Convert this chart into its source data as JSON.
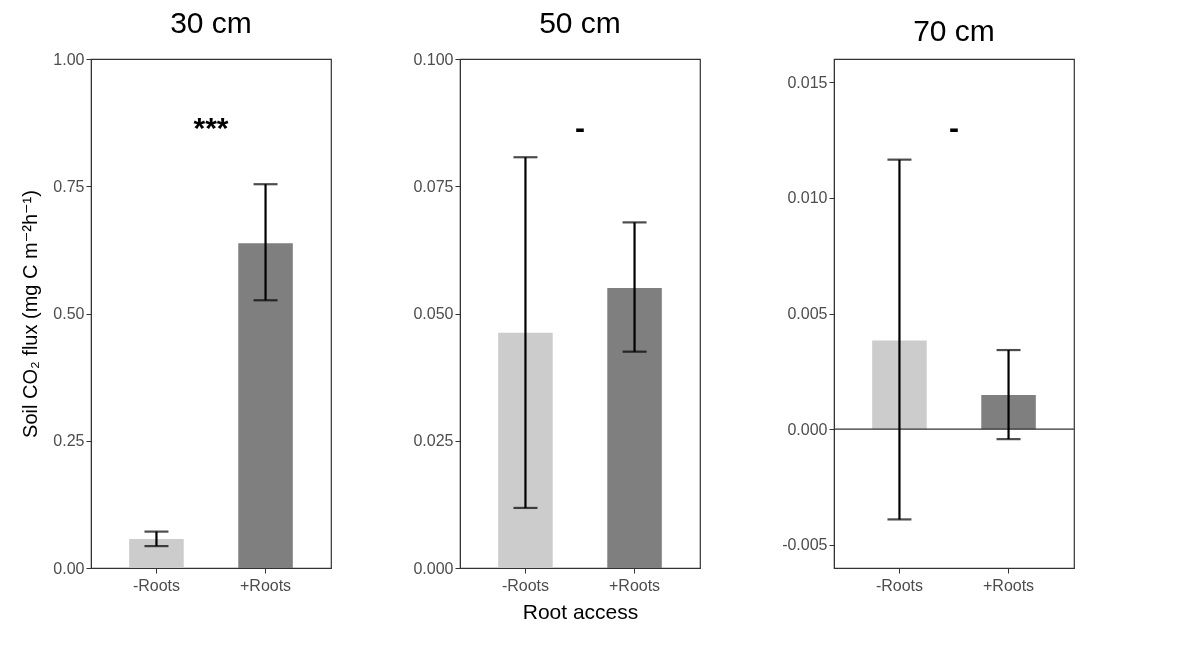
{
  "chart_data": [
    {
      "type": "bar",
      "title": "30 cm",
      "ylabel": "Soil CO₂ flux (mg C m⁻²h⁻¹)",
      "categories": [
        "-Roots",
        "+Roots"
      ],
      "values": [
        0.057,
        0.638
      ],
      "colors": [
        "#cccccc",
        "#7f7f7f"
      ],
      "errors": [
        [
          0.043,
          0.0715
        ],
        [
          0.526,
          0.754
        ]
      ],
      "ylim": [
        0,
        1
      ],
      "yticks": [
        {
          "value": 0,
          "label": "0.00"
        },
        {
          "value": 0.25,
          "label": "0.25"
        },
        {
          "value": 0.5,
          "label": "0.50"
        },
        {
          "value": 0.75,
          "label": "0.75"
        },
        {
          "value": 1,
          "label": "1.00"
        }
      ],
      "grid": false,
      "annotations": [
        "***"
      ]
    },
    {
      "type": "bar",
      "title": "50 cm",
      "xlabel": "Root access",
      "categories": [
        "-Roots",
        "+Roots"
      ],
      "values": [
        0.0462,
        0.055
      ],
      "colors": [
        "#cccccc",
        "#7f7f7f"
      ],
      "errors": [
        [
          0.0118,
          0.0807
        ],
        [
          0.0425,
          0.0679
        ]
      ],
      "ylim": [
        0,
        0.1
      ],
      "yticks": [
        {
          "value": 0,
          "label": "0.000"
        },
        {
          "value": 0.025,
          "label": "0.025"
        },
        {
          "value": 0.05,
          "label": "0.050"
        },
        {
          "value": 0.075,
          "label": "0.075"
        },
        {
          "value": 0.1,
          "label": "0.100"
        }
      ],
      "grid": false,
      "annotations": [
        "-"
      ]
    },
    {
      "type": "bar",
      "title": "70 cm",
      "categories": [
        "-Roots",
        "+Roots"
      ],
      "values": [
        0.00383,
        0.00148
      ],
      "colors": [
        "#cccccc",
        "#7f7f7f"
      ],
      "errors": [
        [
          -0.0039,
          0.01165
        ],
        [
          -0.00043,
          0.00342
        ]
      ],
      "ylim": [
        -0.006,
        0.016
      ],
      "yticks": [
        -0.005,
        {
          "value": 0,
          "label": "0.000"
        },
        {
          "value": 0.005,
          "label": "0.005"
        },
        {
          "value": 0.01,
          "label": "0.010"
        },
        0.015
      ],
      "grid": false,
      "ref_lines": [
        {
          "axis": "y",
          "value": 0,
          "color": "#333333"
        }
      ],
      "annotations": [
        "-"
      ]
    }
  ]
}
